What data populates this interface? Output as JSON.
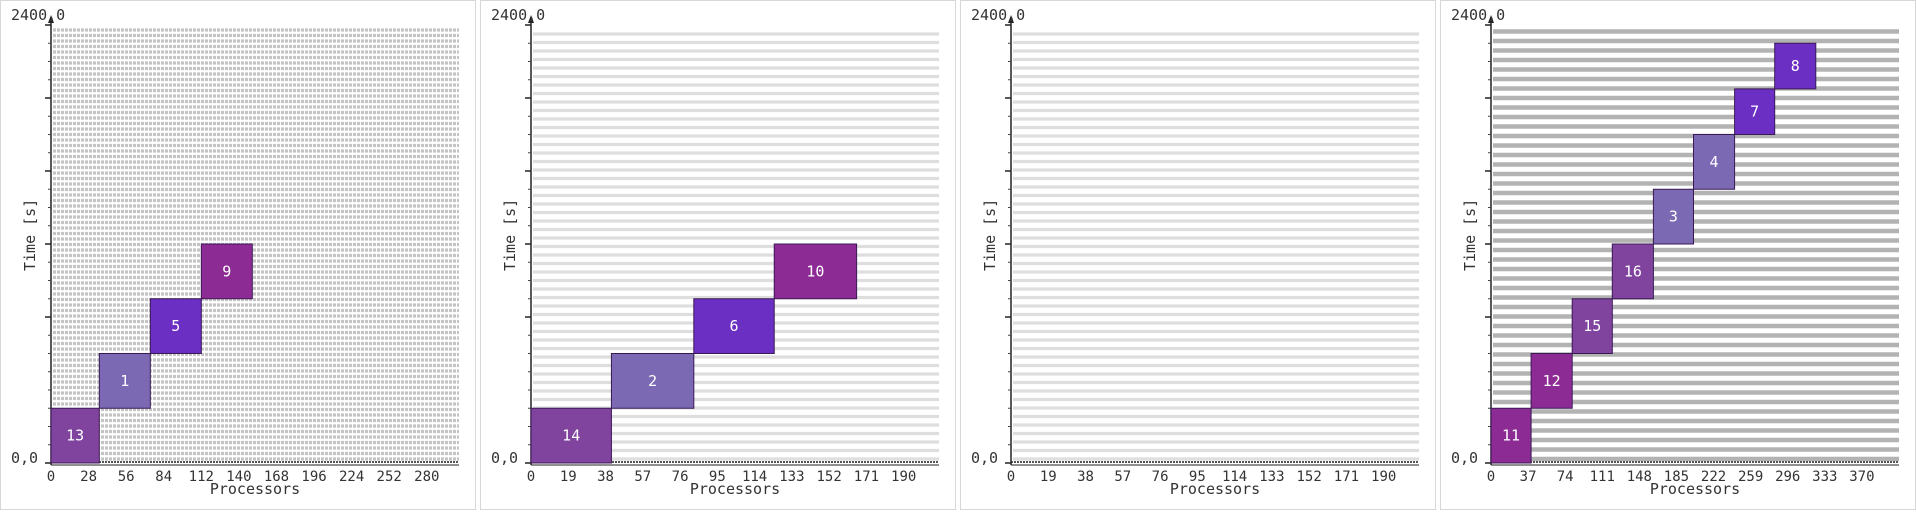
{
  "chart_data": [
    {
      "type": "gantt",
      "xlabel": "Processors",
      "ylabel": "Time [s]",
      "y_top_label": "2400,0",
      "y_bottom_label": "0,0",
      "ylim": [
        0,
        2400
      ],
      "xlim": [
        0,
        304
      ],
      "x_ticks": [
        0,
        28,
        56,
        84,
        112,
        140,
        168,
        196,
        224,
        252,
        280
      ],
      "y_major_ticks": [
        0,
        800,
        1200,
        1600,
        2000,
        2400
      ],
      "stripe_style": "dense-dashed",
      "tasks": [
        {
          "label": "13",
          "x0": 0,
          "x1": 36,
          "y0": 0,
          "y1": 300,
          "color": "#80449f"
        },
        {
          "label": "1",
          "x0": 36,
          "x1": 74,
          "y0": 300,
          "y1": 600,
          "color": "#7b69b4"
        },
        {
          "label": "5",
          "x0": 74,
          "x1": 112,
          "y0": 600,
          "y1": 900,
          "color": "#6c2fc4"
        },
        {
          "label": "9",
          "x0": 112,
          "x1": 150,
          "y0": 900,
          "y1": 1200,
          "color": "#8d2b95"
        }
      ]
    },
    {
      "type": "gantt",
      "xlabel": "Processors",
      "ylabel": "Time [s]",
      "y_top_label": "2400,0",
      "y_bottom_label": "0,0",
      "ylim": [
        0,
        2400
      ],
      "xlim": [
        0,
        208
      ],
      "x_ticks": [
        0,
        19,
        38,
        57,
        76,
        95,
        114,
        133,
        152,
        171,
        190
      ],
      "y_major_ticks": [
        0,
        800,
        1200,
        1600,
        2000,
        2400
      ],
      "stripe_style": "light",
      "tasks": [
        {
          "label": "14",
          "x0": 0,
          "x1": 41,
          "y0": 0,
          "y1": 300,
          "color": "#80449f"
        },
        {
          "label": "2",
          "x0": 41,
          "x1": 83,
          "y0": 300,
          "y1": 600,
          "color": "#7b69b4"
        },
        {
          "label": "6",
          "x0": 83,
          "x1": 124,
          "y0": 600,
          "y1": 900,
          "color": "#6c2fc4"
        },
        {
          "label": "10",
          "x0": 124,
          "x1": 166,
          "y0": 900,
          "y1": 1200,
          "color": "#8d2b95"
        }
      ]
    },
    {
      "type": "gantt",
      "xlabel": "Processors",
      "ylabel": "Time [s]",
      "y_top_label": "2400,0",
      "y_bottom_label": "0,0",
      "ylim": [
        0,
        2400
      ],
      "xlim": [
        0,
        208
      ],
      "x_ticks": [
        0,
        19,
        38,
        57,
        76,
        95,
        114,
        133,
        152,
        171,
        190
      ],
      "y_major_ticks": [
        0,
        800,
        1200,
        1600,
        2000,
        2400
      ],
      "stripe_style": "light",
      "tasks": []
    },
    {
      "type": "gantt",
      "xlabel": "Processors",
      "ylabel": "Time [s]",
      "y_top_label": "2400,0",
      "y_bottom_label": "0,0",
      "ylim": [
        0,
        2400
      ],
      "xlim": [
        0,
        407
      ],
      "x_ticks": [
        0,
        37,
        74,
        111,
        148,
        185,
        222,
        259,
        296,
        333,
        370
      ],
      "y_major_ticks": [
        0,
        800,
        1200,
        1600,
        2000,
        2400
      ],
      "stripe_style": "dark",
      "tasks": [
        {
          "label": "11",
          "x0": 0,
          "x1": 40,
          "y0": 0,
          "y1": 300,
          "color": "#8d2b95"
        },
        {
          "label": "12",
          "x0": 40,
          "x1": 81,
          "y0": 300,
          "y1": 600,
          "color": "#8d2b95"
        },
        {
          "label": "15",
          "x0": 81,
          "x1": 121,
          "y0": 600,
          "y1": 900,
          "color": "#80449f"
        },
        {
          "label": "16",
          "x0": 121,
          "x1": 162,
          "y0": 900,
          "y1": 1200,
          "color": "#80449f"
        },
        {
          "label": "3",
          "x0": 162,
          "x1": 202,
          "y0": 1200,
          "y1": 1500,
          "color": "#7b69b4"
        },
        {
          "label": "4",
          "x0": 202,
          "x1": 243,
          "y0": 1500,
          "y1": 1800,
          "color": "#7b69b4"
        },
        {
          "label": "7",
          "x0": 243,
          "x1": 283,
          "y0": 1800,
          "y1": 2050,
          "color": "#6c2fc4"
        },
        {
          "label": "8",
          "x0": 283,
          "x1": 324,
          "y0": 2050,
          "y1": 2300,
          "color": "#6c2fc4"
        }
      ]
    }
  ]
}
